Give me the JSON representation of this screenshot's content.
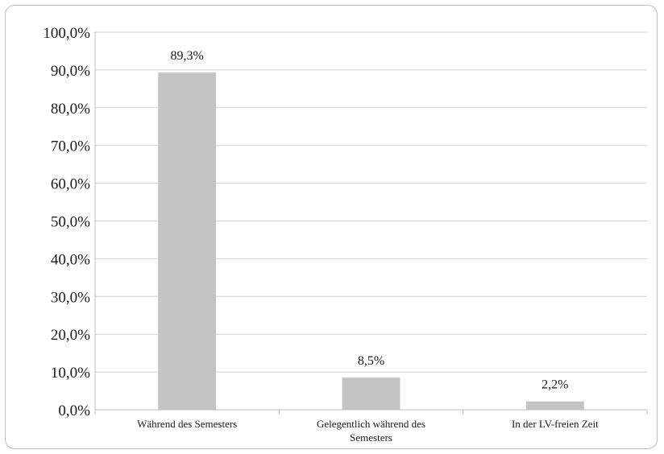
{
  "chart_data": {
    "type": "bar",
    "categories": [
      [
        "Während des Semesters"
      ],
      [
        "Gelegentlich während des",
        "Semesters"
      ],
      [
        "In der LV-freien Zeit"
      ]
    ],
    "values": [
      89.3,
      8.5,
      2.2
    ],
    "data_labels": [
      "89,3%",
      "8,5%",
      "2,2%"
    ],
    "ylim": [
      0,
      100
    ],
    "yticks": [
      0,
      10,
      20,
      30,
      40,
      50,
      60,
      70,
      80,
      90,
      100
    ],
    "ytick_labels": [
      "0,0%",
      "10,0%",
      "20,0%",
      "30,0%",
      "40,0%",
      "50,0%",
      "60,0%",
      "70,0%",
      "80,0%",
      "90,0%",
      "100,0%"
    ],
    "grid": true,
    "legend": false,
    "colors": {
      "bar": "#c4c4c4",
      "grid": "#d4d4d4",
      "axis": "#bdbdbd",
      "frame": "#bdbdbd"
    }
  }
}
